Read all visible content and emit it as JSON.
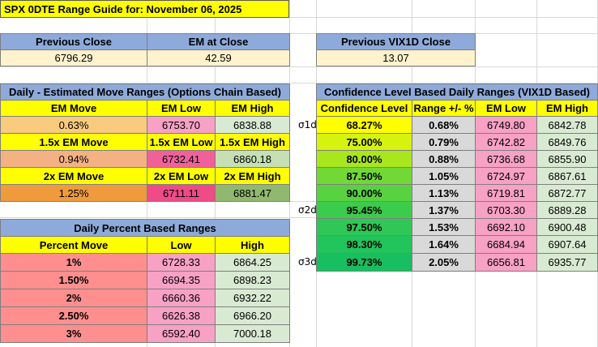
{
  "title": "SPX 0DTE Range Guide for: November 06, 2025",
  "colors": {
    "yellow": "#ffff00",
    "blue_header": "#8eaadb",
    "cream": "#fff2cc",
    "pink": "#f7a1c4",
    "hot_pink": "#f0619a",
    "deep_pink": "#ef4b86",
    "light_green": "#d9ead3",
    "mid_green": "#c6e0b4",
    "salmon": "#ff8f8f",
    "orange_light": "#f8cb7e",
    "orange": "#f4b183",
    "orange_dark": "#f09a3e",
    "green_dark": "#91b86f",
    "gray_cell": "#d9d9d9"
  },
  "summary": {
    "headers": [
      "Previous Close",
      "EM at Close",
      "Previous VIX1D Close"
    ],
    "values": [
      "6796.29",
      "42.59",
      "13.07"
    ]
  },
  "em_section": {
    "title": "Daily - Estimated Move Ranges (Options Chain Based)",
    "header": [
      "EM Move",
      "EM Low",
      "EM High"
    ],
    "rows": [
      [
        "0.63%",
        "6753.70",
        "6838.88"
      ],
      [
        "1.5x EM Move",
        "1.5x EM Low",
        "1.5x EM High"
      ],
      [
        "0.94%",
        "6732.41",
        "6860.18"
      ],
      [
        "2x EM Move",
        "2x EM Low",
        "2x EM High"
      ],
      [
        "1.25%",
        "6711.11",
        "6881.47"
      ]
    ]
  },
  "pct_section": {
    "title": "Daily Percent Based Ranges",
    "header": [
      "Percent Move",
      "Low",
      "High"
    ],
    "rows": [
      [
        "1%",
        "6728.33",
        "6864.25"
      ],
      [
        "1.50%",
        "6694.35",
        "6898.23"
      ],
      [
        "2%",
        "6660.36",
        "6932.22"
      ],
      [
        "2.50%",
        "6626.38",
        "6966.20"
      ],
      [
        "3%",
        "6592.40",
        "7000.18"
      ]
    ]
  },
  "conf_section": {
    "title": "Confidence Level Based Daily Ranges (VIX1D Based)",
    "header": [
      "Confidence Level",
      "Range +/- %",
      "EM Low",
      "EM High"
    ],
    "rows": [
      [
        "68.27%",
        "0.68%",
        "6749.80",
        "6842.78"
      ],
      [
        "75.00%",
        "0.79%",
        "6742.82",
        "6849.76"
      ],
      [
        "80.00%",
        "0.88%",
        "6736.68",
        "6855.90"
      ],
      [
        "87.50%",
        "1.05%",
        "6724.97",
        "6867.61"
      ],
      [
        "90.00%",
        "1.13%",
        "6719.81",
        "6872.77"
      ],
      [
        "95.45%",
        "1.37%",
        "6703.30",
        "6889.28"
      ],
      [
        "97.50%",
        "1.53%",
        "6692.10",
        "6900.48"
      ],
      [
        "98.30%",
        "1.64%",
        "6684.94",
        "6907.64"
      ],
      [
        "99.73%",
        "2.05%",
        "6656.81",
        "6935.77"
      ]
    ],
    "sigma_labels": [
      "σ1d",
      "σ2d",
      "σ3d"
    ]
  }
}
